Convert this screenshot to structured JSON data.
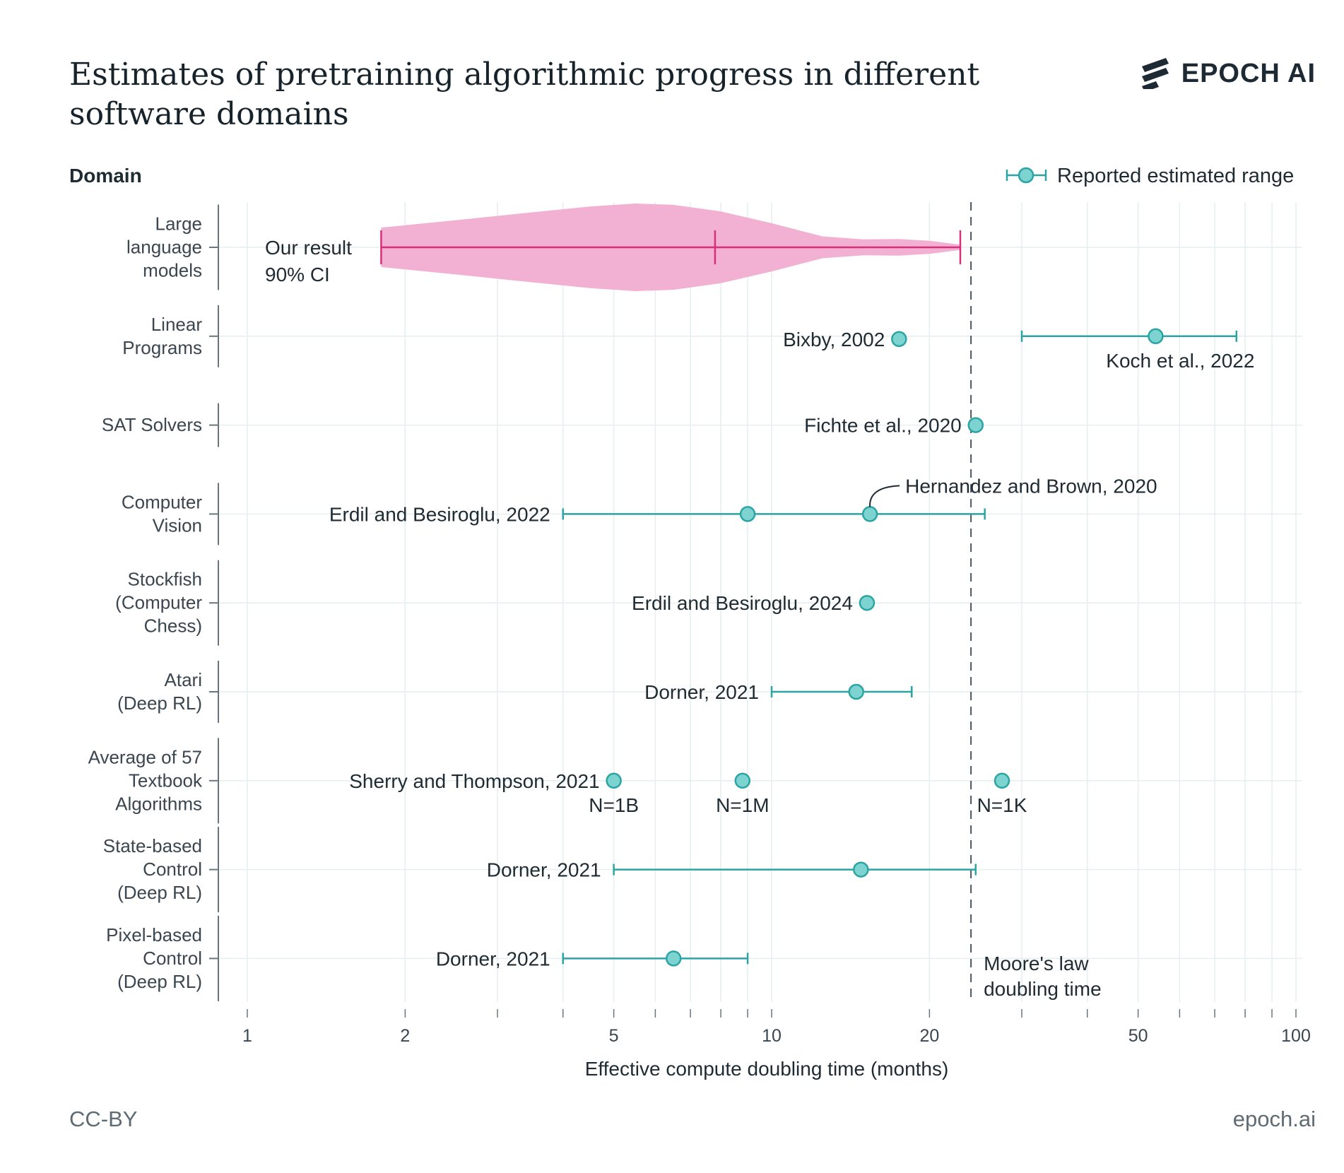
{
  "title": "Estimates of pretraining algorithmic progress in different software domains",
  "brand": {
    "name": "EPOCH AI"
  },
  "footer": {
    "left": "CC-BY",
    "right": "epoch.ai"
  },
  "colors": {
    "series": "#2ba5a3",
    "point_fill": "#7dd3cf",
    "ours": "#d6317a",
    "violin": "#f2b1d2",
    "moore": "#4a5660",
    "grid": "#e6eef0"
  },
  "chart_data": {
    "type": "scatter",
    "x_scale": "log",
    "xlabel": "Effective compute doubling time (months)",
    "ylabel": "Domain",
    "xlim": [
      0.93,
      115
    ],
    "xticks_labeled": [
      1,
      2,
      5,
      10,
      20,
      50,
      100
    ],
    "xticks_minor": [
      3,
      4,
      6,
      7,
      8,
      9,
      30,
      40,
      60,
      70,
      80,
      90
    ],
    "grid": true,
    "legend": {
      "label": "Reported estimated range",
      "position": "top-right"
    },
    "categories": [
      "Large language models",
      "Linear Programs",
      "SAT Solvers",
      "Computer Vision",
      "Stockfish (Computer Chess)",
      "Atari (Deep RL)",
      "Average of 57 Textbook Algorithms",
      "State-based Control (Deep RL)",
      "Pixel-based Control (Deep RL)"
    ],
    "category_lines": [
      [
        "Large",
        "language",
        "models"
      ],
      [
        "Linear",
        "Programs"
      ],
      [
        "SAT Solvers"
      ],
      [
        "Computer",
        "Vision"
      ],
      [
        "Stockfish",
        "(Computer",
        "Chess)"
      ],
      [
        "Atari",
        "(Deep RL)"
      ],
      [
        "Average of 57",
        "Textbook",
        "Algorithms"
      ],
      [
        "State-based",
        "Control",
        "(Deep RL)"
      ],
      [
        "Pixel-based",
        "Control",
        "(Deep RL)"
      ]
    ],
    "our_result": {
      "label": "Our result",
      "sublabel": "90% CI",
      "low": 1.8,
      "median": 7.8,
      "high": 22.9,
      "violin_x": [
        1.8,
        2.5,
        3.5,
        4.5,
        5.5,
        6.5,
        8,
        10,
        12.5,
        15,
        17.5,
        20,
        22.9
      ],
      "violin_density": [
        0.45,
        0.62,
        0.8,
        0.93,
        1.0,
        0.97,
        0.82,
        0.55,
        0.25,
        0.18,
        0.19,
        0.15,
        0.06
      ]
    },
    "estimates": [
      {
        "domain": 1,
        "label": "Bixby, 2002",
        "x": 17.5
      },
      {
        "domain": 1,
        "label": "Koch et al., 2022",
        "x": 54,
        "low": 30,
        "high": 77
      },
      {
        "domain": 2,
        "label": "Fichte et al., 2020",
        "x": 24.5
      },
      {
        "domain": 3,
        "label": "Erdil and Besiroglu, 2022",
        "x": 9,
        "low": 4,
        "high": 25.5
      },
      {
        "domain": 3,
        "label": "Hernandez and Brown, 2020",
        "x": 15.4
      },
      {
        "domain": 4,
        "label": "Erdil and Besiroglu, 2024",
        "x": 15.2
      },
      {
        "domain": 5,
        "label": "Dorner, 2021",
        "x": 14.5,
        "low": 10,
        "high": 18.5
      },
      {
        "domain": 6,
        "label": "Sherry and Thompson, 2021",
        "x": 5,
        "sublabel": "N=1B"
      },
      {
        "domain": 6,
        "x": 8.8,
        "sublabel": "N=1M"
      },
      {
        "domain": 6,
        "x": 27.5,
        "sublabel": "N=1K"
      },
      {
        "domain": 7,
        "label": "Dorner, 2021",
        "x": 14.8,
        "low": 5,
        "high": 24.5
      },
      {
        "domain": 8,
        "label": "Dorner, 2021",
        "x": 6.5,
        "low": 4,
        "high": 9
      }
    ],
    "reference_line": {
      "x": 24,
      "label_lines": [
        "Moore's law",
        "doubling time"
      ]
    }
  }
}
